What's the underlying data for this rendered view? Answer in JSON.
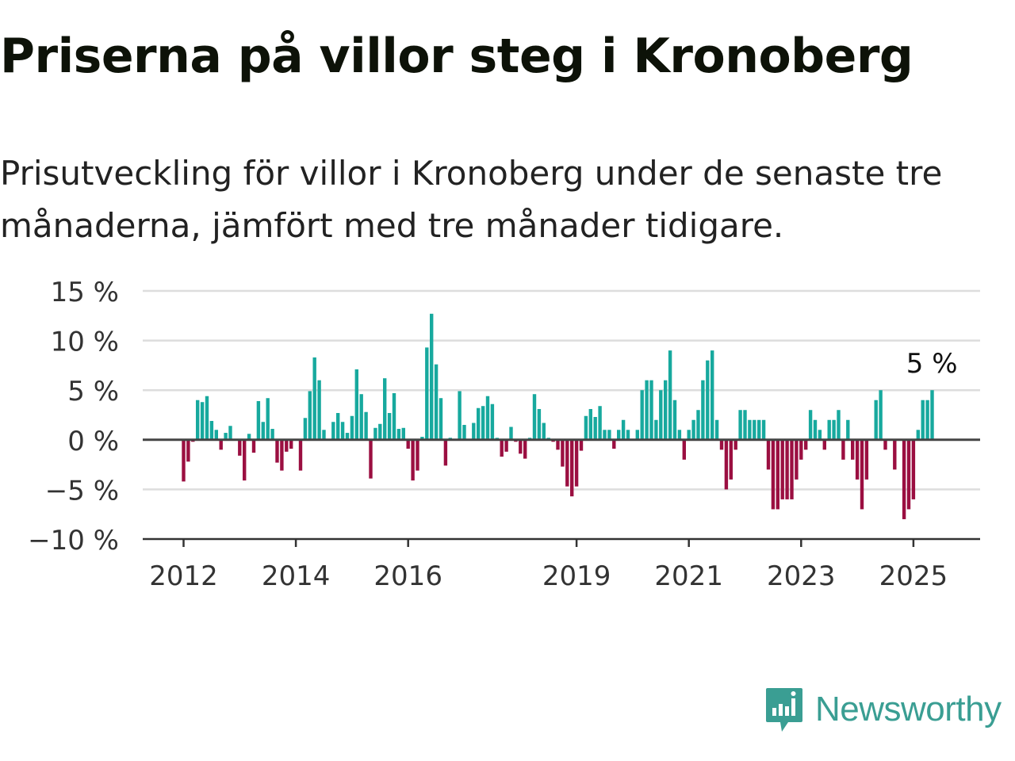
{
  "title": "Priserna på villor steg i Kronoberg",
  "subtitle": "Prisutveckling för villor i Kronoberg under de senaste tre månaderna, jämfört med tre månader tidigare.",
  "brand": {
    "name": "Newsworthy",
    "icon": "newsworthy-logo-icon",
    "color": "#3a9e93"
  },
  "colors": {
    "positive": "#17a99e",
    "negative": "#9b0f41",
    "grid": "#dddddd",
    "axis": "#333333",
    "zero": "#444444"
  },
  "chart_data": {
    "type": "bar",
    "unit": "%",
    "ylim": [
      -10,
      15
    ],
    "yticks": [
      15,
      10,
      5,
      0,
      -5,
      -10
    ],
    "ytick_labels": [
      "15 %",
      "10 %",
      "5 %",
      "0 %",
      "−5 %",
      "−10 %"
    ],
    "xticks": [
      "2012",
      "2014",
      "2016",
      "2019",
      "2021",
      "2023",
      "2025"
    ],
    "grid": true,
    "last_value_label": "5 %",
    "series": [
      {
        "start": "2012-01",
        "frequency": "monthly",
        "values": [
          -4.2,
          -2.2,
          -0.2,
          4.0,
          3.8,
          4.4,
          1.9,
          1.0,
          -1.0,
          0.7,
          1.4,
          0.1,
          -1.6,
          -4.1,
          0.6,
          -1.3,
          3.9,
          1.8,
          4.2,
          1.1,
          -2.3,
          -3.1,
          -1.2,
          -0.9,
          0.1,
          -3.1,
          2.2,
          4.9,
          8.3,
          6.0,
          1.0,
          0.1,
          1.8,
          2.7,
          1.8,
          0.7,
          2.4,
          7.1,
          4.6,
          2.8,
          -3.9,
          1.2,
          1.6,
          6.2,
          2.7,
          4.7,
          1.1,
          1.2,
          -0.9,
          -4.1,
          -3.1,
          0.3,
          9.3,
          12.7,
          7.6,
          4.2,
          -2.6,
          0.2,
          0.1,
          4.9,
          1.5,
          0.1,
          1.7,
          3.2,
          3.4,
          4.4,
          3.6,
          0.2,
          -1.7,
          -1.2,
          1.3,
          -0.2,
          -1.4,
          -1.9,
          0.2,
          4.6,
          3.1,
          1.7,
          0.2,
          -0.2,
          -1.0,
          -2.7,
          -4.7,
          -5.7,
          -4.7,
          -1.1,
          2.4,
          3.1,
          2.3,
          3.4,
          1.0,
          1.0,
          -0.9,
          1.0,
          2.0,
          1.0,
          0.1,
          1.0,
          5.0,
          6.0,
          6.0,
          2.0,
          5.0,
          6.0,
          9.0,
          4.0,
          1.0,
          -2.0,
          1.0,
          2.0,
          3.0,
          6.0,
          8.0,
          9.0,
          2.0,
          -1.0,
          -5.0,
          -4.0,
          -1.0,
          3.0,
          3.0,
          2.0,
          2.0,
          2.0,
          2.0,
          -3.0,
          -7.0,
          -7.0,
          -6.0,
          -6.0,
          -6.0,
          -4.0,
          -2.0,
          -1.0,
          3.0,
          2.0,
          1.0,
          -1.0,
          2.0,
          2.0,
          3.0,
          -2.0,
          2.0,
          -2.0,
          -4.0,
          -7.0,
          -4.0,
          0.1,
          4.0,
          5.0,
          -1.0,
          0.1,
          -3.0,
          0.1,
          -8.0,
          -7.0,
          -6.0,
          1.0,
          4.0,
          4.0,
          5.0
        ]
      }
    ]
  }
}
